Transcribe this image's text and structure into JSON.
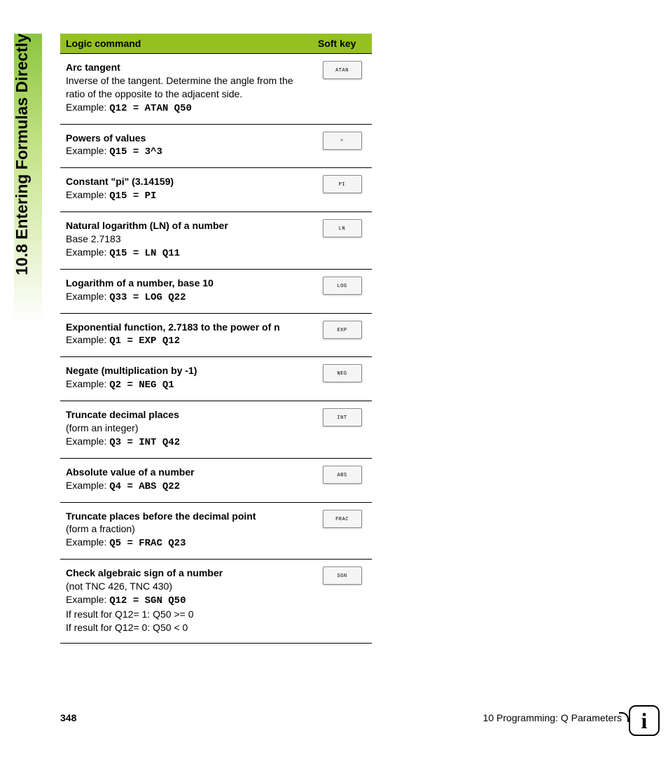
{
  "section_title": "10.8 Entering Formulas Directly",
  "header": {
    "col1": "Logic command",
    "col2": "Soft key"
  },
  "rows": [
    {
      "title": "Arc tangent",
      "sub": "Inverse of the tangent. Determine the angle from the ratio of the opposite to the adjacent side.",
      "example_label": "Example: ",
      "code": "Q12 = ATAN Q50",
      "softkey": "ATAN"
    },
    {
      "title": "Powers of values",
      "sub": "",
      "example_label": "Example: ",
      "code": "Q15 = 3^3",
      "softkey": "^"
    },
    {
      "title": "Constant \"pi\" (3.14159)",
      "sub": "",
      "example_label": "Example: ",
      "code": "Q15 = PI",
      "softkey": "PI"
    },
    {
      "title": "Natural logarithm (LN) of a number",
      "sub": "Base 2.7183",
      "example_label": "Example: ",
      "code": "Q15 = LN Q11",
      "softkey": "LN"
    },
    {
      "title": "Logarithm of a number, base 10",
      "sub": "",
      "example_label": "Example: ",
      "code": "Q33 = LOG Q22",
      "softkey": "LOG"
    },
    {
      "title": "Exponential function, 2.7183 to the power of n",
      "sub": "",
      "example_label": "Example: ",
      "code": "Q1 = EXP Q12",
      "softkey": "EXP"
    },
    {
      "title": "Negate (multiplication by -1)",
      "sub": "",
      "example_label": "Example: ",
      "code": "Q2 = NEG Q1",
      "softkey": "NEG"
    },
    {
      "title": "Truncate decimal places",
      "sub": "(form an integer)",
      "example_label": "Example: ",
      "code": "Q3 = INT Q42",
      "softkey": "INT"
    },
    {
      "title": "Absolute value of a number",
      "sub": "",
      "example_label": "Example: ",
      "code": "Q4 = ABS Q22",
      "softkey": "ABS"
    },
    {
      "title": "Truncate places before the decimal point",
      "sub": "(form a fraction)",
      "example_label": "Example: ",
      "code": "Q5 = FRAC Q23",
      "softkey": "FRAC"
    },
    {
      "title": "Check algebraic sign of a number",
      "sub": "(not TNC 426, TNC 430)",
      "example_label": "Example: ",
      "code": "Q12 = SGN Q50",
      "post_lines": [
        "If result for Q12= 1: Q50 >= 0",
        "If result for Q12= 0: Q50 < 0"
      ],
      "softkey": "SGN"
    }
  ],
  "footer": {
    "page": "348",
    "chapter": "10 Programming: Q Parameters"
  },
  "info_glyph": "i",
  "colors": {
    "header_bg": "#95c11f",
    "gradient_top": "#8bc53f",
    "softkey_bg": "#f5f5f5",
    "softkey_border": "#888888"
  }
}
